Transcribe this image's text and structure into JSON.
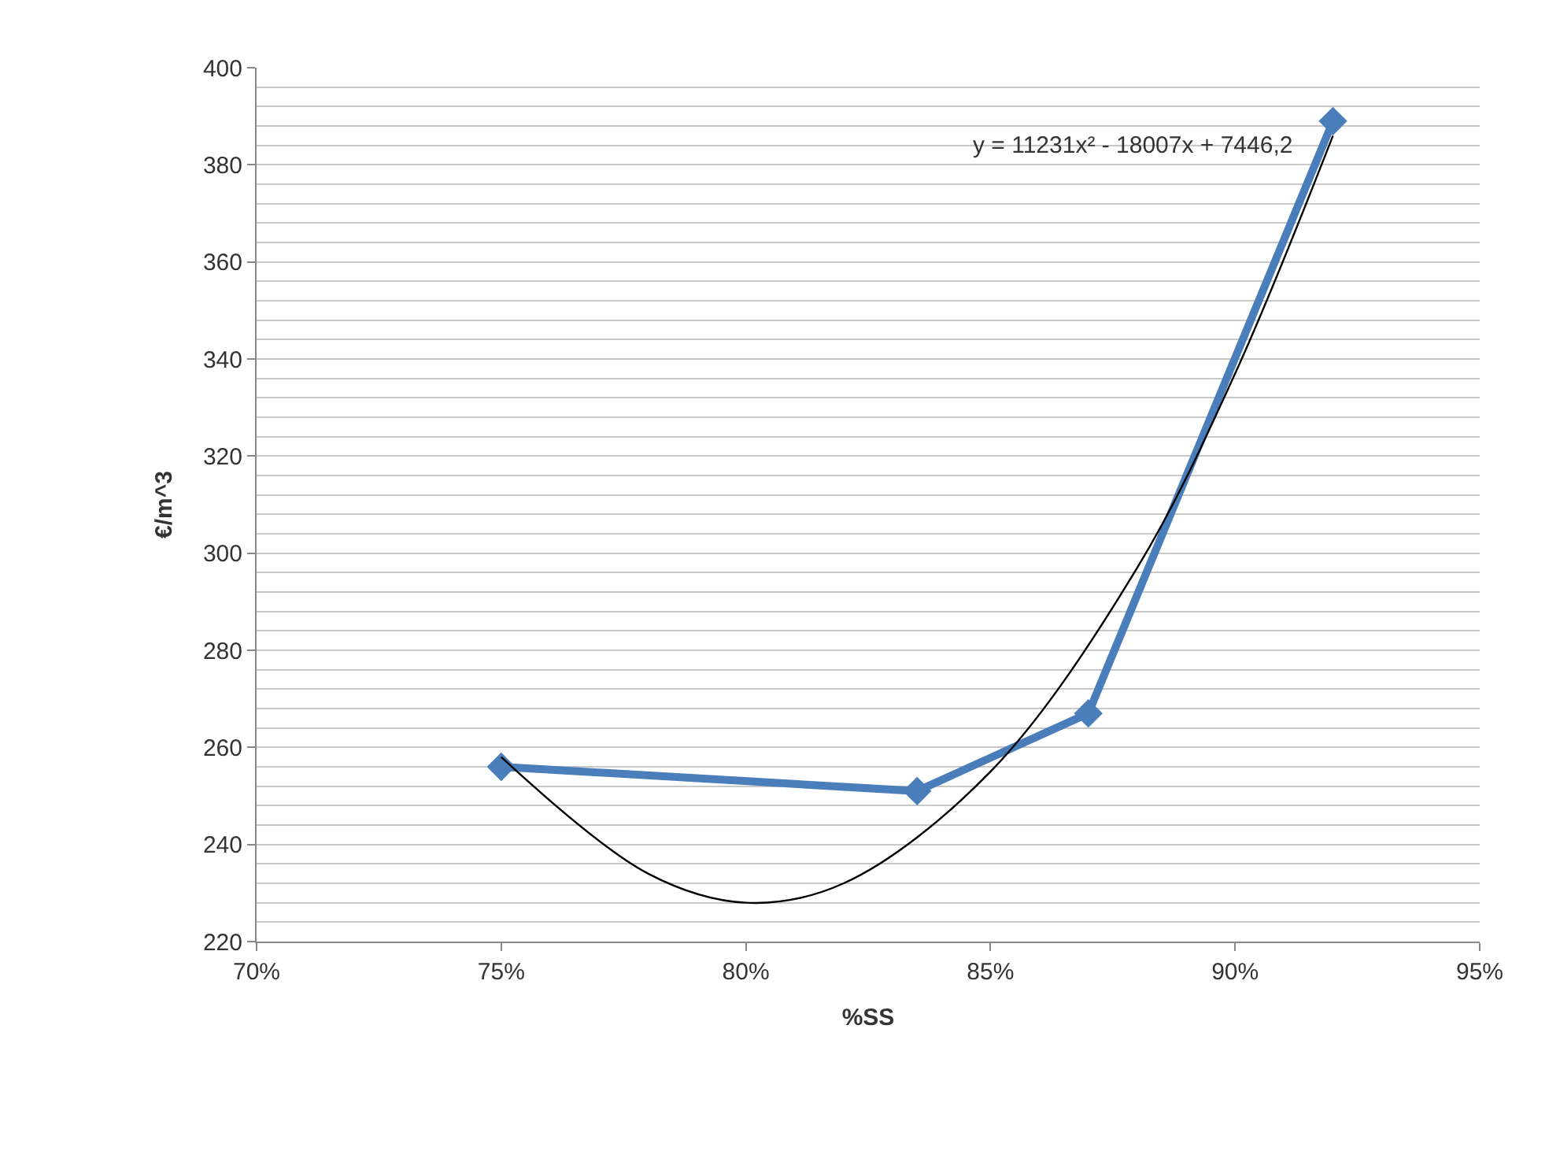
{
  "chart_data": {
    "type": "line",
    "xlabel": "%SS",
    "ylabel": "€/m^3",
    "annotations": [
      "y = 11231x² - 18007x + 7446,2"
    ],
    "series": [
      {
        "color": "#4a7ebb",
        "x": [
          0.75,
          0.835,
          0.87,
          0.92
        ],
        "values": [
          256,
          251,
          267,
          389
        ]
      },
      {
        "color": "#000000",
        "marker": "none",
        "x": [
          0.75,
          0.78,
          0.8,
          0.82,
          0.85,
          0.88,
          0.9,
          0.92
        ],
        "values": [
          258,
          234,
          228,
          232,
          255,
          297,
          337,
          386
        ]
      }
    ],
    "xlim": [
      0.7,
      0.95
    ],
    "xticks": [
      {
        "value": 0.7,
        "label": "70%"
      },
      {
        "value": 0.75,
        "label": "75%"
      },
      {
        "value": 0.8,
        "label": "80%"
      },
      {
        "value": 0.85,
        "label": "85%"
      },
      {
        "value": 0.9,
        "label": "90%"
      },
      {
        "value": 0.95,
        "label": "95%"
      }
    ],
    "ylim": [
      220,
      400
    ],
    "yticks": [
      220,
      240,
      260,
      280,
      300,
      320,
      340,
      360,
      380,
      400
    ],
    "grid": "y",
    "marker": "diamond"
  }
}
